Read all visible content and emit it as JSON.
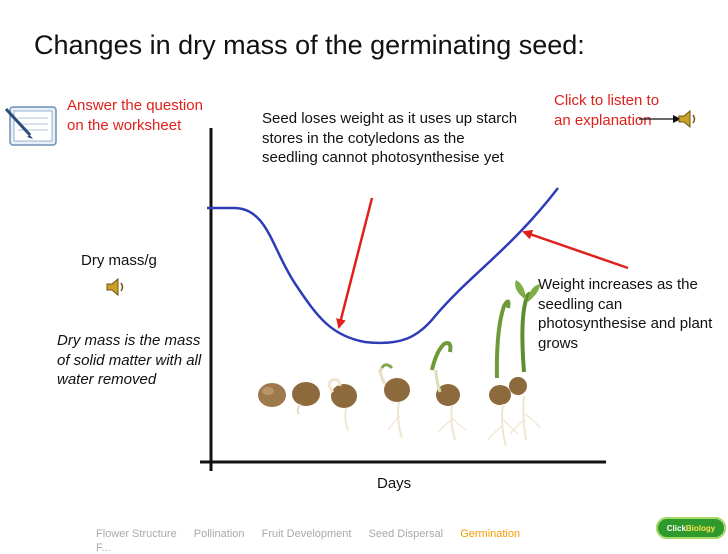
{
  "title": "Changes in dry mass of the germinating seed:",
  "answer_prompt": "Answer the question on the worksheet",
  "listen_prompt": "Click to listen to an explanation",
  "annotation_loss": "Seed loses weight as it uses up starch stores in the cotyledons as the seedling cannot photosynthesise yet",
  "annotation_gain": "Weight increases as the seedling can photosynthesise and plant grows",
  "y_axis_label": "Dry mass/g",
  "x_axis_label": "Days",
  "dry_mass_definition": "Dry mass is the mass of solid matter with all water removed",
  "footer_nav": {
    "items": [
      "Flower Structure",
      "Pollination",
      "Fruit Development",
      "Seed Dispersal",
      "Germination"
    ],
    "active": "Germination",
    "second_line": "F..."
  },
  "logo": {
    "part1": "Click",
    "part2": "Biology"
  },
  "colors": {
    "accent_red": "#e0201b",
    "curve_blue": "#2f3cb8",
    "nav_active": "#f59a00",
    "nav": "#a9a9a9"
  },
  "icons": [
    "worksheet-icon",
    "speaker-icon",
    "seedling-stage-images"
  ]
}
